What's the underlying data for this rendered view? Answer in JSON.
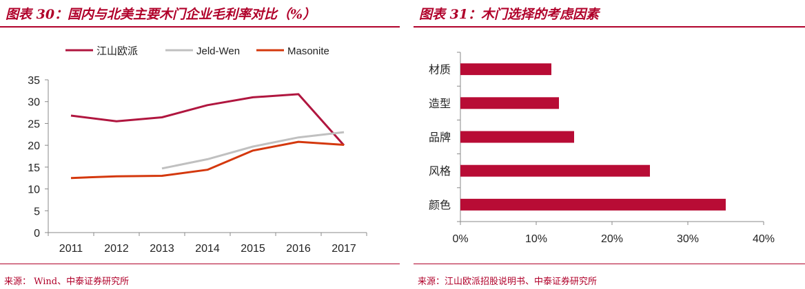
{
  "left": {
    "title": "图表 30：国内与北美主要木门企业毛利率对比（%）",
    "source": "来源： Wind、中泰证券研究所"
  },
  "right": {
    "title": "图表 31：木门选择的考虑因素",
    "source": "来源：江山欧派招股说明书、中泰证券研究所"
  },
  "colors": {
    "accent": "#b0002a",
    "series1": "#b0163f",
    "series2": "#c0c0c0",
    "series3": "#d4380d"
  },
  "chart_data": [
    {
      "type": "line",
      "title": "",
      "x": [
        "2011",
        "2012",
        "2013",
        "2014",
        "2015",
        "2016",
        "2017"
      ],
      "ylim": [
        0,
        35
      ],
      "yticks": [
        "0",
        "5",
        "10",
        "15",
        "20",
        "25",
        "30",
        "35"
      ],
      "legend": "top",
      "grid": false,
      "series": [
        {
          "name": "江山欧派",
          "color": "#b0163f",
          "values": [
            26.8,
            25.5,
            26.4,
            29.2,
            31.0,
            31.7,
            20.0
          ]
        },
        {
          "name": "Jeld-Wen",
          "color": "#c0c0c0",
          "values": [
            null,
            null,
            14.7,
            16.8,
            19.7,
            21.8,
            23.0
          ]
        },
        {
          "name": "Masonite",
          "color": "#d4380d",
          "values": [
            12.5,
            12.9,
            13.0,
            14.4,
            18.8,
            20.8,
            20.1
          ]
        }
      ]
    },
    {
      "type": "bar",
      "orientation": "horizontal",
      "title": "",
      "categories": [
        "材质",
        "造型",
        "品牌",
        "风格",
        "颜色"
      ],
      "values": [
        0.12,
        0.13,
        0.15,
        0.25,
        0.35
      ],
      "xlim": [
        0,
        0.4
      ],
      "xticks": [
        "0%",
        "10%",
        "20%",
        "30%",
        "40%"
      ],
      "color": "#b80c35",
      "grid": false
    }
  ]
}
